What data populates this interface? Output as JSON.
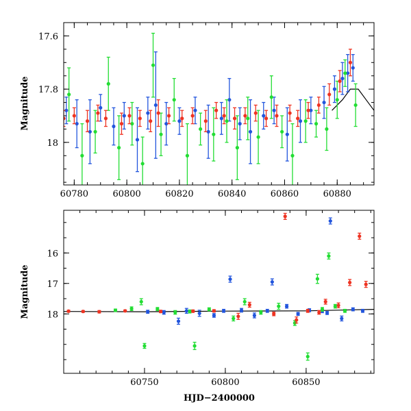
{
  "chart_data": [
    {
      "type": "scatter",
      "panel": "top",
      "title": "",
      "xlabel": "",
      "ylabel": "Magnitude",
      "xlim": [
        60776,
        60894
      ],
      "ylim": [
        18.16,
        17.55
      ],
      "y_inverted": true,
      "x_ticks": [
        60780,
        60800,
        60820,
        60840,
        60860,
        60880
      ],
      "x_tick_labels": [
        "60780",
        "60800",
        "60820",
        "60840",
        "60860",
        "60880"
      ],
      "y_ticks": [
        17.6,
        17.8,
        18.0
      ],
      "y_tick_labels": [
        "17.6",
        "17.8",
        "18"
      ],
      "grid": false,
      "series": [
        {
          "color": "#2255dd",
          "x": [
            60777,
            60781,
            60786,
            60790,
            60795,
            60799,
            60804,
            60808,
            60811,
            60815,
            60820,
            60826,
            60831,
            60836,
            60839,
            60843,
            60847,
            60852,
            60856,
            60861,
            60866,
            60870,
            60875,
            60879,
            60882,
            60884,
            60886
          ],
          "y": [
            17.88,
            17.93,
            17.96,
            17.87,
            17.94,
            17.9,
            17.99,
            17.89,
            17.86,
            17.93,
            17.92,
            17.88,
            17.96,
            17.91,
            17.84,
            17.93,
            17.96,
            17.9,
            17.88,
            17.97,
            17.92,
            17.88,
            17.85,
            17.8,
            17.76,
            17.74,
            17.72
          ],
          "err": [
            0.05,
            0.09,
            0.12,
            0.05,
            0.07,
            0.05,
            0.12,
            0.06,
            0.2,
            0.08,
            0.05,
            0.05,
            0.1,
            0.06,
            0.08,
            0.06,
            0.12,
            0.05,
            0.05,
            0.1,
            0.08,
            0.05,
            0.06,
            0.05,
            0.06,
            0.07,
            0.05
          ]
        },
        {
          "color": "#22dd33",
          "x": [
            60778,
            60783,
            60788,
            60793,
            60797,
            60802,
            60806,
            60810,
            60813,
            60818,
            60823,
            60828,
            60833,
            60838,
            60842,
            60846,
            60850,
            60855,
            60859,
            60863,
            60868,
            60872,
            60876,
            60880,
            60883,
            60887
          ],
          "y": [
            17.82,
            18.05,
            17.96,
            17.78,
            18.02,
            17.93,
            18.08,
            17.71,
            17.97,
            17.84,
            18.05,
            17.95,
            17.97,
            17.92,
            18.02,
            17.91,
            17.98,
            17.83,
            17.96,
            18.05,
            17.92,
            17.93,
            17.95,
            17.84,
            17.74,
            17.86
          ],
          "err": [
            0.1,
            0.12,
            0.08,
            0.1,
            0.12,
            0.08,
            0.1,
            0.12,
            0.08,
            0.08,
            0.12,
            0.06,
            0.1,
            0.08,
            0.12,
            0.08,
            0.1,
            0.08,
            0.06,
            0.12,
            0.08,
            0.05,
            0.08,
            0.07,
            0.05,
            0.08
          ]
        },
        {
          "color": "#ee3322",
          "x": [
            60776,
            60780,
            60785,
            60789,
            60792,
            60798,
            60801,
            60805,
            60809,
            60812,
            60816,
            60821,
            60825,
            60830,
            60834,
            60837,
            60841,
            60845,
            60849,
            60853,
            60857,
            60862,
            60865,
            60869,
            60873,
            60877,
            60881,
            60885
          ],
          "y": [
            17.91,
            17.9,
            17.92,
            17.89,
            17.91,
            17.93,
            17.9,
            17.91,
            17.92,
            17.89,
            17.9,
            17.91,
            17.9,
            17.92,
            17.88,
            17.9,
            17.91,
            17.9,
            17.89,
            17.91,
            17.9,
            17.89,
            17.91,
            17.88,
            17.86,
            17.82,
            17.77,
            17.7
          ],
          "err": [
            0.03,
            0.03,
            0.04,
            0.03,
            0.03,
            0.04,
            0.03,
            0.03,
            0.04,
            0.05,
            0.03,
            0.03,
            0.03,
            0.04,
            0.03,
            0.03,
            0.04,
            0.03,
            0.03,
            0.03,
            0.04,
            0.03,
            0.03,
            0.03,
            0.03,
            0.04,
            0.04,
            0.05
          ]
        }
      ],
      "model_curve": {
        "color": "#000000",
        "x": [
          60878,
          60882,
          60885,
          60888,
          60891,
          60894
        ],
        "y": [
          17.88,
          17.84,
          17.8,
          17.8,
          17.84,
          17.88
        ]
      }
    },
    {
      "type": "scatter",
      "panel": "bottom",
      "title": "",
      "xlabel": "HJD−2400000",
      "ylabel": "Magnitude",
      "xlim": [
        60700,
        60892
      ],
      "ylim": [
        19.95,
        14.6
      ],
      "y_inverted": true,
      "x_ticks": [
        60750,
        60800,
        60850
      ],
      "x_tick_labels": [
        "60750",
        "60800",
        "60850"
      ],
      "y_ticks": [
        16,
        17,
        18
      ],
      "y_tick_labels": [
        "16",
        "17",
        "18"
      ],
      "grid": false,
      "series": [
        {
          "color": "#2255dd",
          "x": [
            60752,
            60762,
            60771,
            60776,
            60784,
            60793,
            60799,
            60803,
            60810,
            60818,
            60826,
            60829,
            60838,
            60845,
            60852,
            60860,
            60863,
            60865,
            60872,
            60879,
            60885
          ],
          "y": [
            17.93,
            17.95,
            18.24,
            17.9,
            17.98,
            18.05,
            17.9,
            16.86,
            17.88,
            18.05,
            17.9,
            16.95,
            17.75,
            18.0,
            17.88,
            17.9,
            17.97,
            14.95,
            18.15,
            17.85,
            17.9
          ],
          "err": [
            0.05,
            0.06,
            0.1,
            0.08,
            0.1,
            0.06,
            0.05,
            0.1,
            0.06,
            0.08,
            0.05,
            0.1,
            0.06,
            0.05,
            0.05,
            0.06,
            0.05,
            0.1,
            0.08,
            0.05,
            0.05
          ]
        },
        {
          "color": "#22dd33",
          "x": [
            60732,
            60742,
            60748,
            60750,
            60758,
            60769,
            60778,
            60781,
            60790,
            60805,
            60812,
            60822,
            60833,
            60843,
            60851,
            60857,
            60860,
            60864,
            60868,
            60874
          ],
          "y": [
            17.88,
            17.83,
            17.6,
            19.05,
            17.84,
            17.95,
            17.92,
            19.05,
            17.85,
            18.15,
            17.6,
            17.95,
            17.75,
            18.3,
            19.4,
            16.85,
            17.85,
            16.1,
            17.75,
            17.9
          ],
          "err": [
            0.04,
            0.06,
            0.1,
            0.08,
            0.05,
            0.06,
            0.05,
            0.12,
            0.05,
            0.08,
            0.1,
            0.06,
            0.1,
            0.08,
            0.12,
            0.15,
            0.06,
            0.1,
            0.06,
            0.05
          ]
        },
        {
          "color": "#ee3322",
          "x": [
            60703,
            60712,
            60722,
            60738,
            60760,
            60780,
            60793,
            60808,
            60815,
            60830,
            60837,
            60844,
            60851,
            60858,
            60862,
            60870,
            60877,
            60883,
            60887
          ],
          "y": [
            17.91,
            17.92,
            17.93,
            17.9,
            17.92,
            17.91,
            17.9,
            18.08,
            17.7,
            18.0,
            14.8,
            18.2,
            17.9,
            17.95,
            17.6,
            17.72,
            16.97,
            15.45,
            17.03
          ],
          "err": [
            0.03,
            0.03,
            0.04,
            0.03,
            0.04,
            0.04,
            0.04,
            0.1,
            0.08,
            0.06,
            0.1,
            0.1,
            0.05,
            0.06,
            0.08,
            0.08,
            0.1,
            0.1,
            0.1
          ]
        }
      ],
      "model_curve": {
        "color": "#000000",
        "x": [
          60700,
          60750,
          60800,
          60850,
          60892
        ],
        "y": [
          17.92,
          17.93,
          17.91,
          17.9,
          17.85
        ]
      }
    }
  ]
}
